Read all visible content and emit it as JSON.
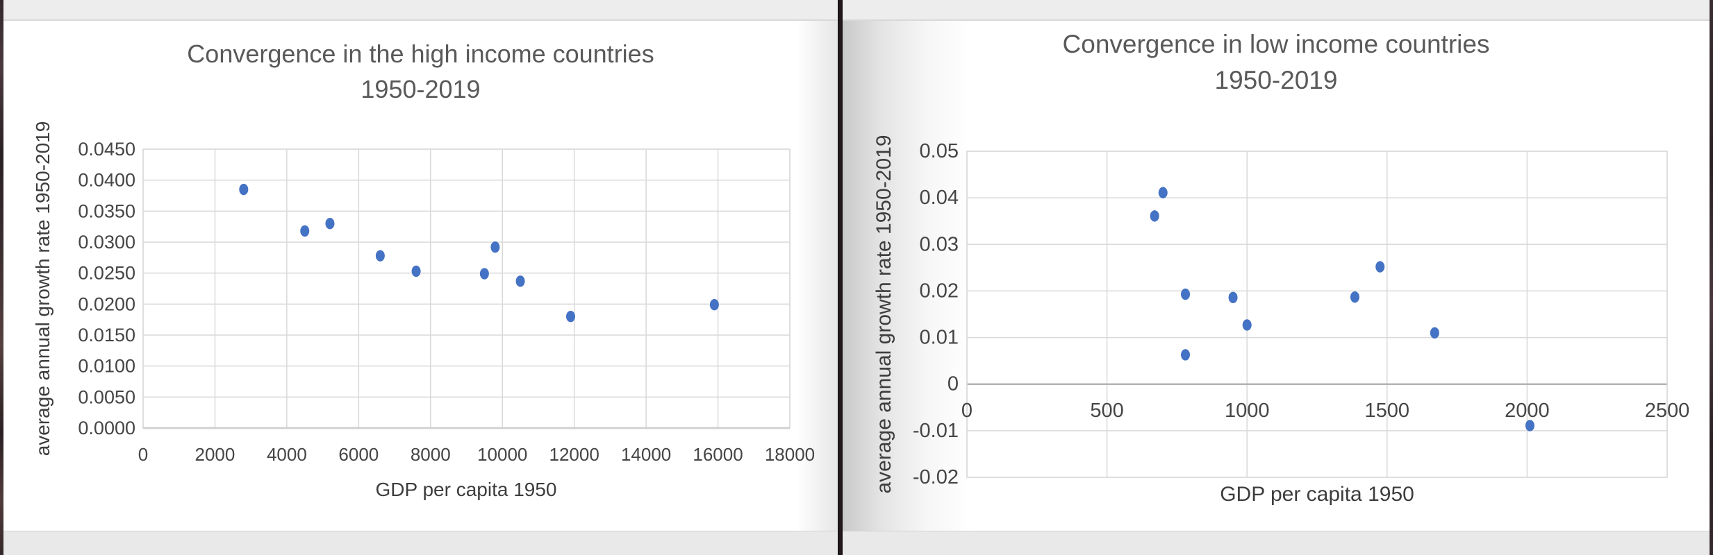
{
  "style": {
    "marker_color": "#4472c4",
    "grid_color": "#d9d9d9",
    "axis_line_color": "#b3b3b3",
    "title_color": "#595959",
    "tick_color": "#454545",
    "label_color": "#3d3d3d"
  },
  "chart_data": [
    {
      "type": "scatter",
      "title": "Convergence in the high income countries 1950-2019",
      "title_line1": "Convergence in the high income countries",
      "title_line2": "1950-2019",
      "xlabel": "GDP per capita 1950",
      "ylabel": "average annual growth rate 1950-2019",
      "xlim": [
        0,
        18000
      ],
      "ylim": [
        0.0,
        0.045
      ],
      "grid": true,
      "legend": false,
      "x_tick_values": [
        0,
        2000,
        4000,
        6000,
        8000,
        10000,
        12000,
        14000,
        16000,
        18000
      ],
      "x_tick_labels": [
        "0",
        "2000",
        "4000",
        "6000",
        "8000",
        "10000",
        "12000",
        "14000",
        "16000",
        "18000"
      ],
      "y_tick_values": [
        0.045,
        0.04,
        0.035,
        0.03,
        0.025,
        0.02,
        0.015,
        0.01,
        0.005,
        0.0
      ],
      "y_tick_labels": [
        "0.0450",
        "0.0400",
        "0.0350",
        "0.0300",
        "0.0250",
        "0.0200",
        "0.0150",
        "0.0100",
        "0.0050",
        "0.0000"
      ],
      "points": [
        {
          "x": 2800,
          "y": 0.0385
        },
        {
          "x": 4500,
          "y": 0.0318
        },
        {
          "x": 5200,
          "y": 0.033
        },
        {
          "x": 6600,
          "y": 0.0278
        },
        {
          "x": 7600,
          "y": 0.0253
        },
        {
          "x": 9500,
          "y": 0.0249
        },
        {
          "x": 9800,
          "y": 0.0292
        },
        {
          "x": 10500,
          "y": 0.0237
        },
        {
          "x": 11900,
          "y": 0.018
        },
        {
          "x": 15900,
          "y": 0.0199
        }
      ]
    },
    {
      "type": "scatter",
      "title": "Convergence in low income countries 1950-2019",
      "title_line1": "Convergence in low income countries",
      "title_line2": "1950-2019",
      "xlabel": "GDP per capita 1950",
      "ylabel": "average annual growth rate 1950-2019",
      "xlim": [
        0,
        2500
      ],
      "ylim": [
        -0.02,
        0.05
      ],
      "grid": true,
      "legend": false,
      "x_tick_values": [
        0,
        500,
        1000,
        1500,
        2000,
        2500
      ],
      "x_tick_labels": [
        "0",
        "500",
        "1000",
        "1500",
        "2000",
        "2500"
      ],
      "y_tick_values": [
        0.05,
        0.04,
        0.03,
        0.02,
        0.01,
        0.0,
        -0.01,
        -0.02
      ],
      "y_tick_labels": [
        "0.05",
        "0.04",
        "0.03",
        "0.02",
        "0.01",
        "0",
        "-0.01",
        "-0.02"
      ],
      "points": [
        {
          "x": 700,
          "y": 0.0411
        },
        {
          "x": 670,
          "y": 0.0361
        },
        {
          "x": 780,
          "y": 0.0193
        },
        {
          "x": 950,
          "y": 0.0186
        },
        {
          "x": 1000,
          "y": 0.0127
        },
        {
          "x": 780,
          "y": 0.0063
        },
        {
          "x": 1385,
          "y": 0.0187
        },
        {
          "x": 1475,
          "y": 0.0252
        },
        {
          "x": 1670,
          "y": 0.011
        },
        {
          "x": 2010,
          "y": -0.0089
        }
      ]
    }
  ]
}
